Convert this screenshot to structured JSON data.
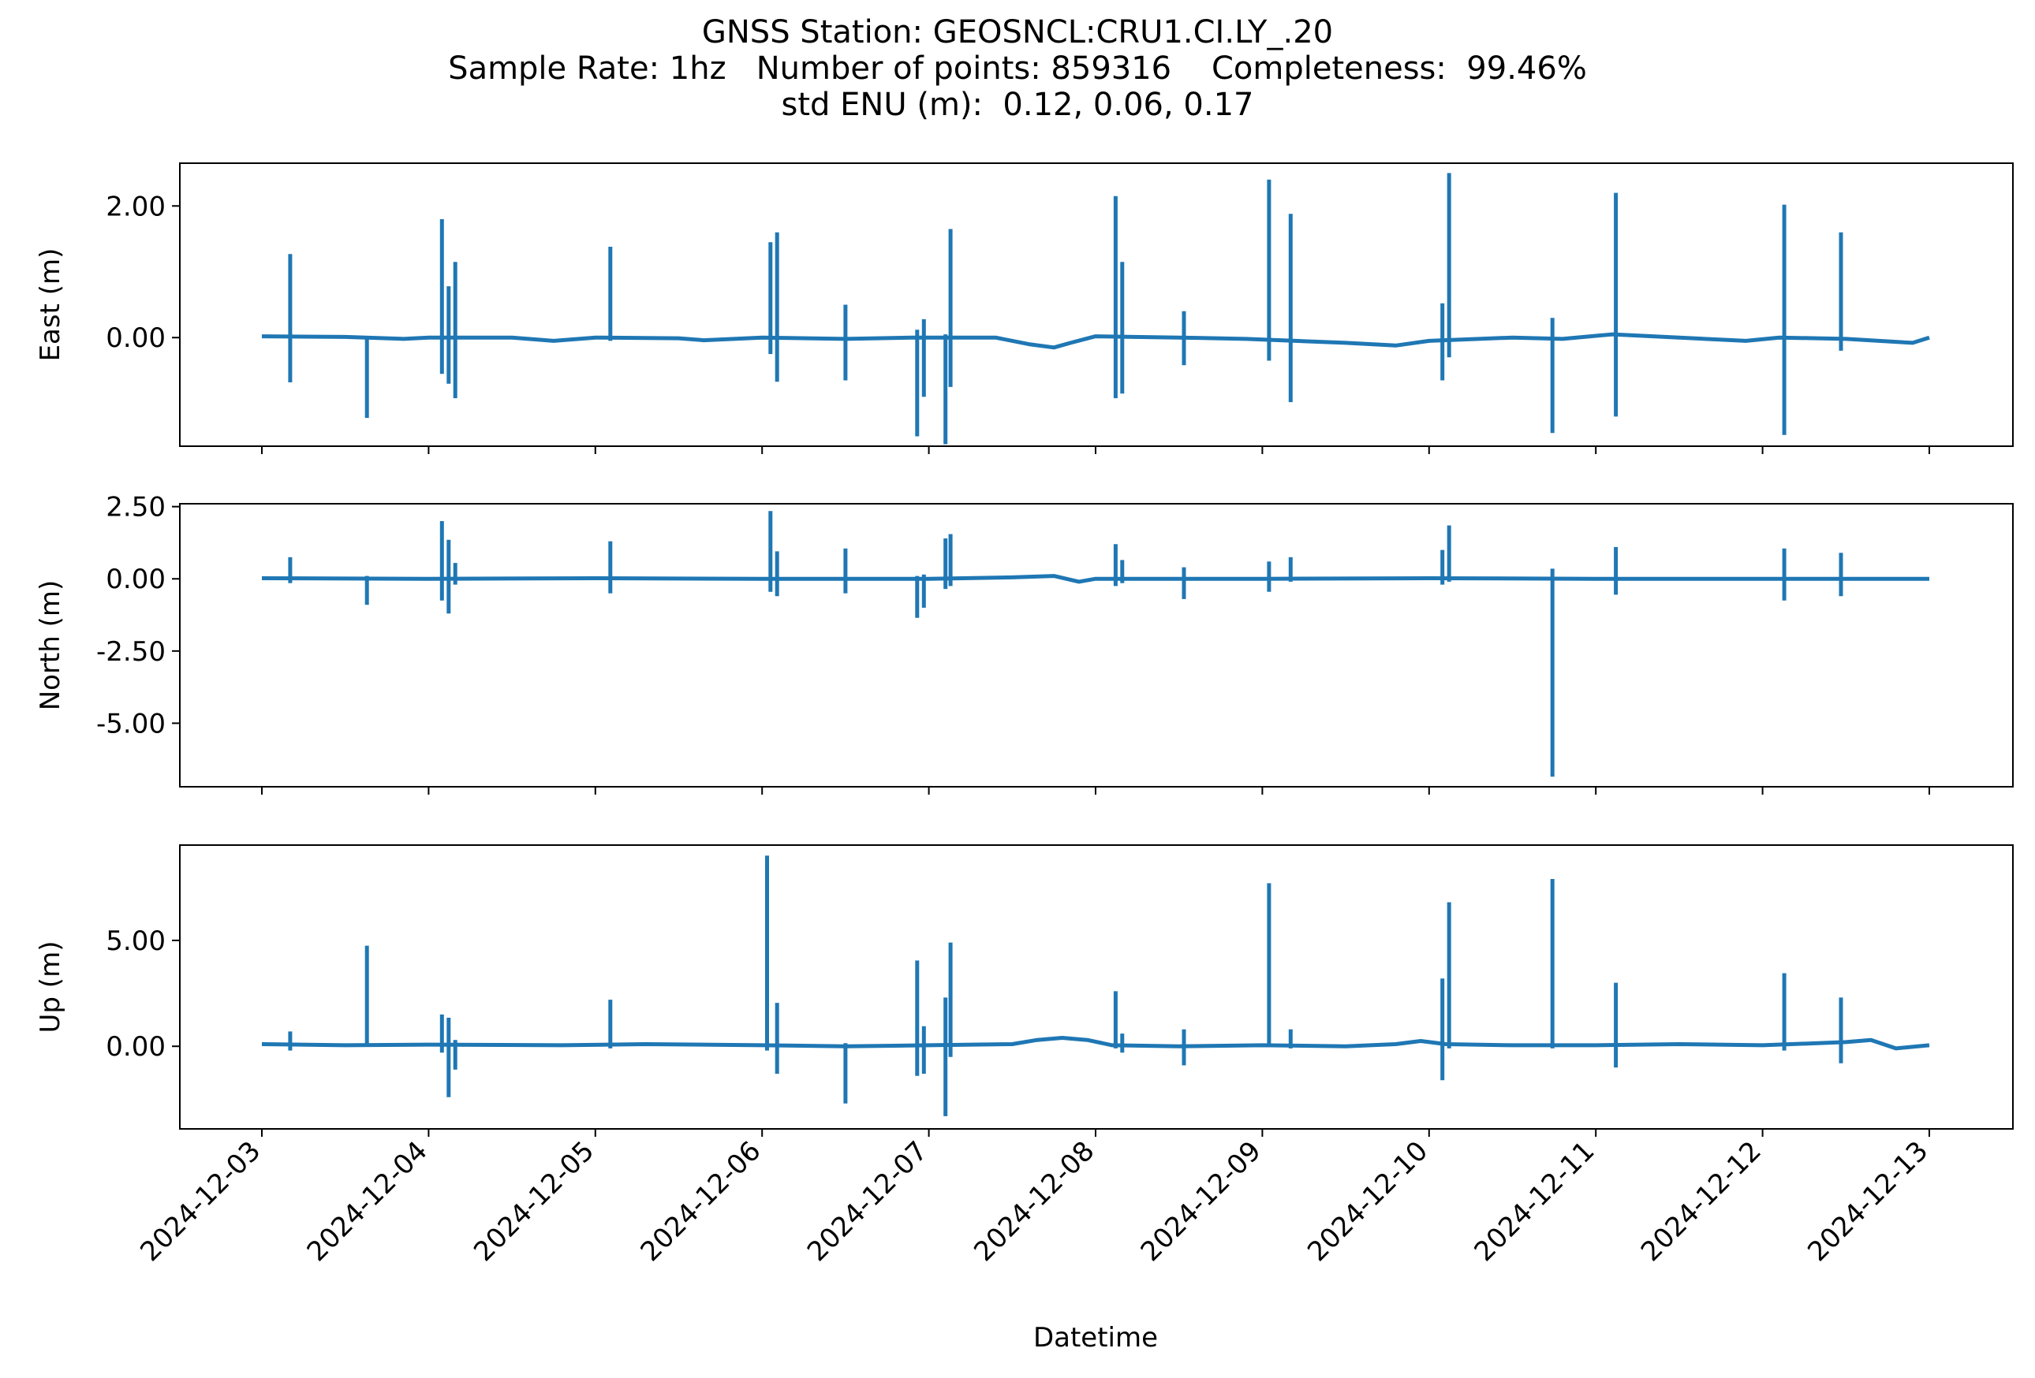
{
  "figure": {
    "title_lines": [
      "GNSS Station: GEOSNCL:CRU1.CI.LY_.20",
      "Sample Rate: 1hz   Number of points: 859316    Completeness:  99.46%",
      "std ENU (m):  0.12, 0.06, 0.17"
    ],
    "xlabel": "Datetime",
    "line_color": "#1f77b4"
  },
  "chart_data": [
    {
      "type": "line",
      "ylabel": "East (m)",
      "x_range": [
        "2024-12-03",
        "2024-12-13"
      ],
      "y_range": [
        -1.65,
        2.65
      ],
      "yticks": [
        0.0,
        2.0
      ],
      "ytick_labels": [
        "0.00",
        "2.00"
      ],
      "xticks": [
        "2024-12-03",
        "2024-12-04",
        "2024-12-05",
        "2024-12-06",
        "2024-12-07",
        "2024-12-08",
        "2024-12-09",
        "2024-12-10",
        "2024-12-11",
        "2024-12-12",
        "2024-12-13"
      ],
      "baseline": [
        [
          0.0,
          0.02
        ],
        [
          0.5,
          0.01
        ],
        [
          0.85,
          -0.02
        ],
        [
          1.0,
          0.0
        ],
        [
          1.5,
          0.0
        ],
        [
          1.75,
          -0.05
        ],
        [
          2.0,
          0.0
        ],
        [
          2.5,
          -0.01
        ],
        [
          2.65,
          -0.04
        ],
        [
          3.0,
          0.0
        ],
        [
          3.5,
          -0.02
        ],
        [
          3.9,
          0.0
        ],
        [
          4.4,
          0.0
        ],
        [
          4.6,
          -0.1
        ],
        [
          4.75,
          -0.15
        ],
        [
          4.85,
          -0.08
        ],
        [
          5.0,
          0.02
        ],
        [
          5.5,
          0.0
        ],
        [
          5.9,
          -0.02
        ],
        [
          6.2,
          -0.05
        ],
        [
          6.5,
          -0.08
        ],
        [
          6.8,
          -0.12
        ],
        [
          7.0,
          -0.05
        ],
        [
          7.5,
          0.0
        ],
        [
          7.8,
          -0.02
        ],
        [
          8.1,
          0.05
        ],
        [
          8.5,
          0.0
        ],
        [
          8.9,
          -0.05
        ],
        [
          9.1,
          0.0
        ],
        [
          9.5,
          -0.02
        ],
        [
          9.9,
          -0.08
        ],
        [
          10.0,
          0.0
        ]
      ],
      "spikes": [
        {
          "x": 0.17,
          "hi": 1.27,
          "lo": -0.68
        },
        {
          "x": 0.63,
          "hi": 0.0,
          "lo": -1.22
        },
        {
          "x": 1.08,
          "hi": 1.8,
          "lo": -0.55
        },
        {
          "x": 1.12,
          "hi": 0.78,
          "lo": -0.7
        },
        {
          "x": 1.16,
          "hi": 1.15,
          "lo": -0.92
        },
        {
          "x": 2.09,
          "hi": 1.38,
          "lo": -0.05
        },
        {
          "x": 3.05,
          "hi": 1.45,
          "lo": -0.25
        },
        {
          "x": 3.09,
          "hi": 1.6,
          "lo": -0.67
        },
        {
          "x": 3.5,
          "hi": 0.5,
          "lo": -0.65
        },
        {
          "x": 3.93,
          "hi": 0.12,
          "lo": -1.5
        },
        {
          "x": 3.97,
          "hi": 0.28,
          "lo": -0.9
        },
        {
          "x": 4.1,
          "hi": 0.05,
          "lo": -1.62
        },
        {
          "x": 4.13,
          "hi": 1.65,
          "lo": -0.75
        },
        {
          "x": 5.12,
          "hi": 2.15,
          "lo": -0.92
        },
        {
          "x": 5.16,
          "hi": 1.15,
          "lo": -0.85
        },
        {
          "x": 5.53,
          "hi": 0.4,
          "lo": -0.42
        },
        {
          "x": 6.04,
          "hi": 2.4,
          "lo": -0.35
        },
        {
          "x": 6.17,
          "hi": 1.88,
          "lo": -0.98
        },
        {
          "x": 7.08,
          "hi": 0.52,
          "lo": -0.65
        },
        {
          "x": 7.12,
          "hi": 2.5,
          "lo": -0.3
        },
        {
          "x": 7.74,
          "hi": 0.3,
          "lo": -1.45
        },
        {
          "x": 8.12,
          "hi": 2.2,
          "lo": -1.2
        },
        {
          "x": 9.13,
          "hi": 2.02,
          "lo": -1.48
        },
        {
          "x": 9.47,
          "hi": 1.6,
          "lo": -0.2
        }
      ]
    },
    {
      "type": "line",
      "ylabel": "North (m)",
      "x_range": [
        "2024-12-03",
        "2024-12-13"
      ],
      "y_range": [
        -7.2,
        2.6
      ],
      "yticks": [
        2.5,
        0.0,
        -2.5,
        -5.0
      ],
      "ytick_labels": [
        "2.50",
        "0.00",
        "-2.50",
        "-5.00"
      ],
      "xticks": [
        "2024-12-03",
        "2024-12-04",
        "2024-12-05",
        "2024-12-06",
        "2024-12-07",
        "2024-12-08",
        "2024-12-09",
        "2024-12-10",
        "2024-12-11",
        "2024-12-12",
        "2024-12-13"
      ],
      "baseline": [
        [
          0.0,
          0.02
        ],
        [
          1.0,
          0.0
        ],
        [
          2.0,
          0.02
        ],
        [
          3.0,
          0.0
        ],
        [
          4.0,
          0.0
        ],
        [
          4.5,
          0.05
        ],
        [
          4.75,
          0.1
        ],
        [
          4.9,
          -0.1
        ],
        [
          5.0,
          0.0
        ],
        [
          6.0,
          0.0
        ],
        [
          7.0,
          0.02
        ],
        [
          8.0,
          0.0
        ],
        [
          9.0,
          0.0
        ],
        [
          10.0,
          0.0
        ]
      ],
      "spikes": [
        {
          "x": 0.17,
          "hi": 0.75,
          "lo": -0.15
        },
        {
          "x": 0.63,
          "hi": 0.1,
          "lo": -0.9
        },
        {
          "x": 1.08,
          "hi": 2.0,
          "lo": -0.75
        },
        {
          "x": 1.12,
          "hi": 1.35,
          "lo": -1.2
        },
        {
          "x": 1.16,
          "hi": 0.55,
          "lo": -0.2
        },
        {
          "x": 2.09,
          "hi": 1.3,
          "lo": -0.5
        },
        {
          "x": 3.05,
          "hi": 2.35,
          "lo": -0.45
        },
        {
          "x": 3.09,
          "hi": 0.95,
          "lo": -0.6
        },
        {
          "x": 3.5,
          "hi": 1.05,
          "lo": -0.5
        },
        {
          "x": 3.93,
          "hi": 0.1,
          "lo": -1.35
        },
        {
          "x": 3.97,
          "hi": 0.15,
          "lo": -1.0
        },
        {
          "x": 4.1,
          "hi": 1.4,
          "lo": -0.35
        },
        {
          "x": 4.13,
          "hi": 1.55,
          "lo": -0.25
        },
        {
          "x": 5.12,
          "hi": 1.2,
          "lo": -0.25
        },
        {
          "x": 5.16,
          "hi": 0.65,
          "lo": -0.15
        },
        {
          "x": 5.53,
          "hi": 0.4,
          "lo": -0.7
        },
        {
          "x": 6.04,
          "hi": 0.6,
          "lo": -0.45
        },
        {
          "x": 6.17,
          "hi": 0.75,
          "lo": -0.1
        },
        {
          "x": 7.08,
          "hi": 1.0,
          "lo": -0.2
        },
        {
          "x": 7.12,
          "hi": 1.85,
          "lo": -0.1
        },
        {
          "x": 7.74,
          "hi": 0.35,
          "lo": -6.85
        },
        {
          "x": 8.12,
          "hi": 1.1,
          "lo": -0.55
        },
        {
          "x": 9.13,
          "hi": 1.05,
          "lo": -0.75
        },
        {
          "x": 9.47,
          "hi": 0.9,
          "lo": -0.6
        }
      ]
    },
    {
      "type": "line",
      "ylabel": "Up (m)",
      "x_range": [
        "2024-12-03",
        "2024-12-13"
      ],
      "y_range": [
        -3.9,
        9.5
      ],
      "yticks": [
        5.0,
        0.0
      ],
      "ytick_labels": [
        "5.00",
        "0.00"
      ],
      "xticks": [
        "2024-12-03",
        "2024-12-04",
        "2024-12-05",
        "2024-12-06",
        "2024-12-07",
        "2024-12-08",
        "2024-12-09",
        "2024-12-10",
        "2024-12-11",
        "2024-12-12",
        "2024-12-13"
      ],
      "baseline": [
        [
          0.0,
          0.1
        ],
        [
          0.5,
          0.05
        ],
        [
          1.0,
          0.08
        ],
        [
          1.8,
          0.05
        ],
        [
          2.3,
          0.1
        ],
        [
          3.0,
          0.05
        ],
        [
          3.5,
          0.0
        ],
        [
          4.0,
          0.05
        ],
        [
          4.5,
          0.1
        ],
        [
          4.65,
          0.3
        ],
        [
          4.8,
          0.4
        ],
        [
          4.95,
          0.3
        ],
        [
          5.1,
          0.05
        ],
        [
          5.5,
          0.0
        ],
        [
          6.0,
          0.05
        ],
        [
          6.5,
          0.0
        ],
        [
          6.8,
          0.1
        ],
        [
          6.95,
          0.25
        ],
        [
          7.1,
          0.1
        ],
        [
          7.5,
          0.05
        ],
        [
          8.0,
          0.05
        ],
        [
          8.5,
          0.1
        ],
        [
          9.0,
          0.05
        ],
        [
          9.5,
          0.2
        ],
        [
          9.65,
          0.3
        ],
        [
          9.8,
          -0.1
        ],
        [
          10.0,
          0.05
        ]
      ],
      "spikes": [
        {
          "x": 0.17,
          "hi": 0.7,
          "lo": -0.2
        },
        {
          "x": 0.63,
          "hi": 4.75,
          "lo": 0.0
        },
        {
          "x": 1.08,
          "hi": 1.5,
          "lo": -0.3
        },
        {
          "x": 1.12,
          "hi": 1.35,
          "lo": -2.4
        },
        {
          "x": 1.16,
          "hi": 0.3,
          "lo": -1.1
        },
        {
          "x": 2.09,
          "hi": 2.2,
          "lo": -0.1
        },
        {
          "x": 3.03,
          "hi": 9.0,
          "lo": -0.2
        },
        {
          "x": 3.09,
          "hi": 2.05,
          "lo": -1.3
        },
        {
          "x": 3.5,
          "hi": 0.15,
          "lo": -2.7
        },
        {
          "x": 3.93,
          "hi": 4.05,
          "lo": -1.4
        },
        {
          "x": 3.97,
          "hi": 0.95,
          "lo": -1.3
        },
        {
          "x": 4.1,
          "hi": 2.3,
          "lo": -3.3
        },
        {
          "x": 4.13,
          "hi": 4.9,
          "lo": -0.5
        },
        {
          "x": 5.12,
          "hi": 2.6,
          "lo": -0.1
        },
        {
          "x": 5.16,
          "hi": 0.6,
          "lo": -0.3
        },
        {
          "x": 5.53,
          "hi": 0.8,
          "lo": -0.9
        },
        {
          "x": 6.04,
          "hi": 7.7,
          "lo": 0.0
        },
        {
          "x": 6.17,
          "hi": 0.8,
          "lo": -0.1
        },
        {
          "x": 7.08,
          "hi": 3.2,
          "lo": -1.6
        },
        {
          "x": 7.12,
          "hi": 6.8,
          "lo": -0.1
        },
        {
          "x": 7.74,
          "hi": 7.9,
          "lo": -0.1
        },
        {
          "x": 8.12,
          "hi": 3.0,
          "lo": -1.0
        },
        {
          "x": 9.13,
          "hi": 3.45,
          "lo": -0.2
        },
        {
          "x": 9.47,
          "hi": 2.3,
          "lo": -0.8
        }
      ]
    }
  ]
}
